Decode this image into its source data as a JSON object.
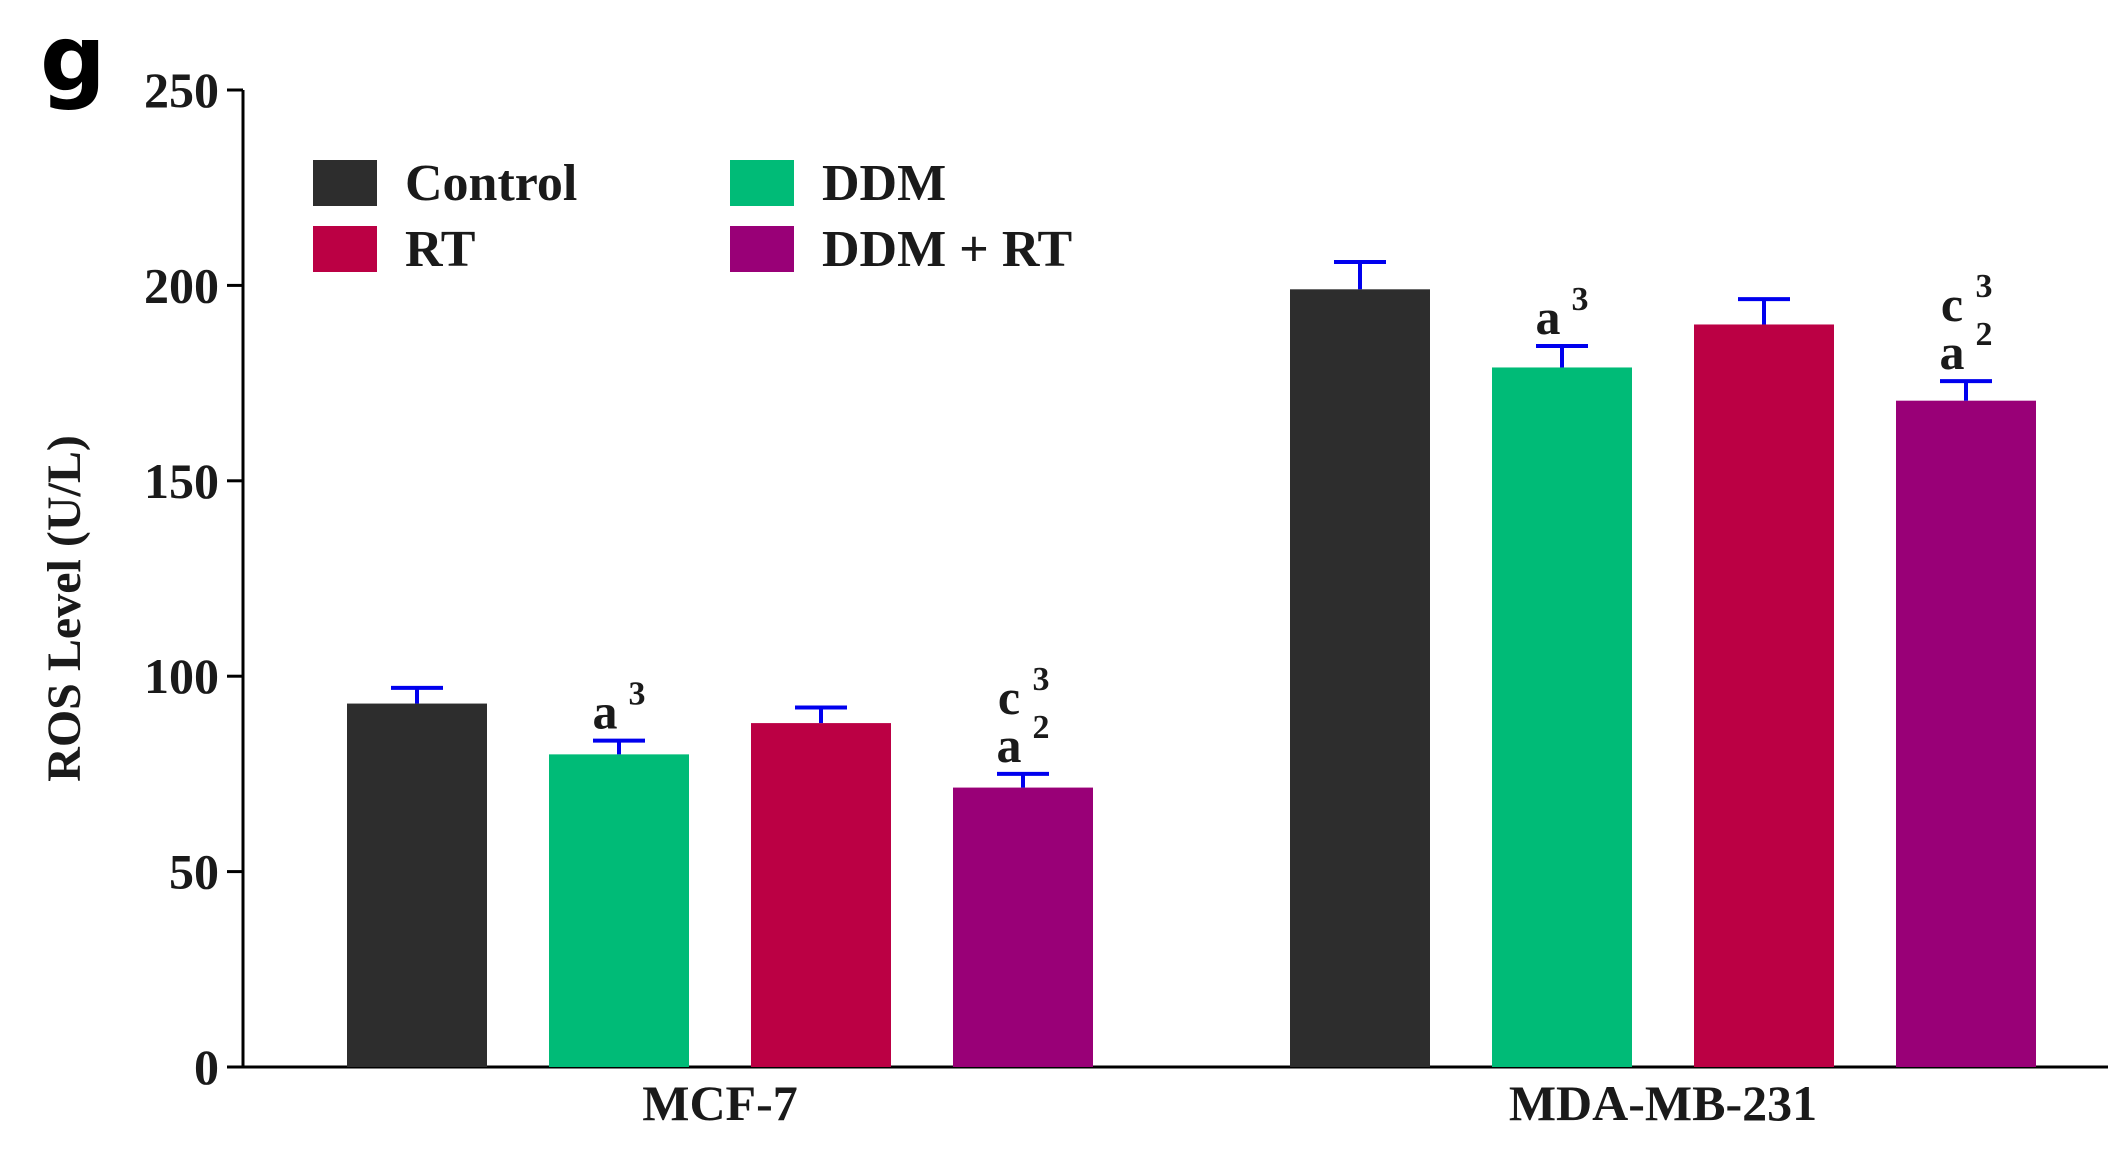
{
  "panel_label": "g",
  "chart_data": {
    "type": "bar",
    "title": "",
    "xlabel": "",
    "ylabel": "ROS Level (U/L)",
    "ylim": [
      0,
      250
    ],
    "yticks": [
      0,
      50,
      100,
      150,
      200,
      250
    ],
    "categories": [
      "MCF-7",
      "MDA-MB-231"
    ],
    "series": [
      {
        "name": "Control",
        "color": "#2d2d2d",
        "values": [
          93,
          199
        ],
        "errors": [
          4,
          7
        ],
        "annotations": [
          "",
          ""
        ]
      },
      {
        "name": "DDM",
        "color": "#00bb77",
        "values": [
          80,
          179
        ],
        "errors": [
          3.5,
          5.5
        ],
        "annotations": [
          "a3",
          "a3"
        ]
      },
      {
        "name": "RT",
        "color": "#bb0044",
        "values": [
          88,
          190
        ],
        "errors": [
          4,
          6.5
        ],
        "annotations": [
          "",
          ""
        ]
      },
      {
        "name": "DDM + RT",
        "color": "#990077",
        "values": [
          71.5,
          170.5
        ],
        "errors": [
          3.5,
          5
        ],
        "annotations": [
          "c3 a2",
          "c3 a2"
        ]
      }
    ],
    "error_bar_color": "#0000ee",
    "legend": {
      "position": "top-left",
      "columns": 2
    }
  }
}
